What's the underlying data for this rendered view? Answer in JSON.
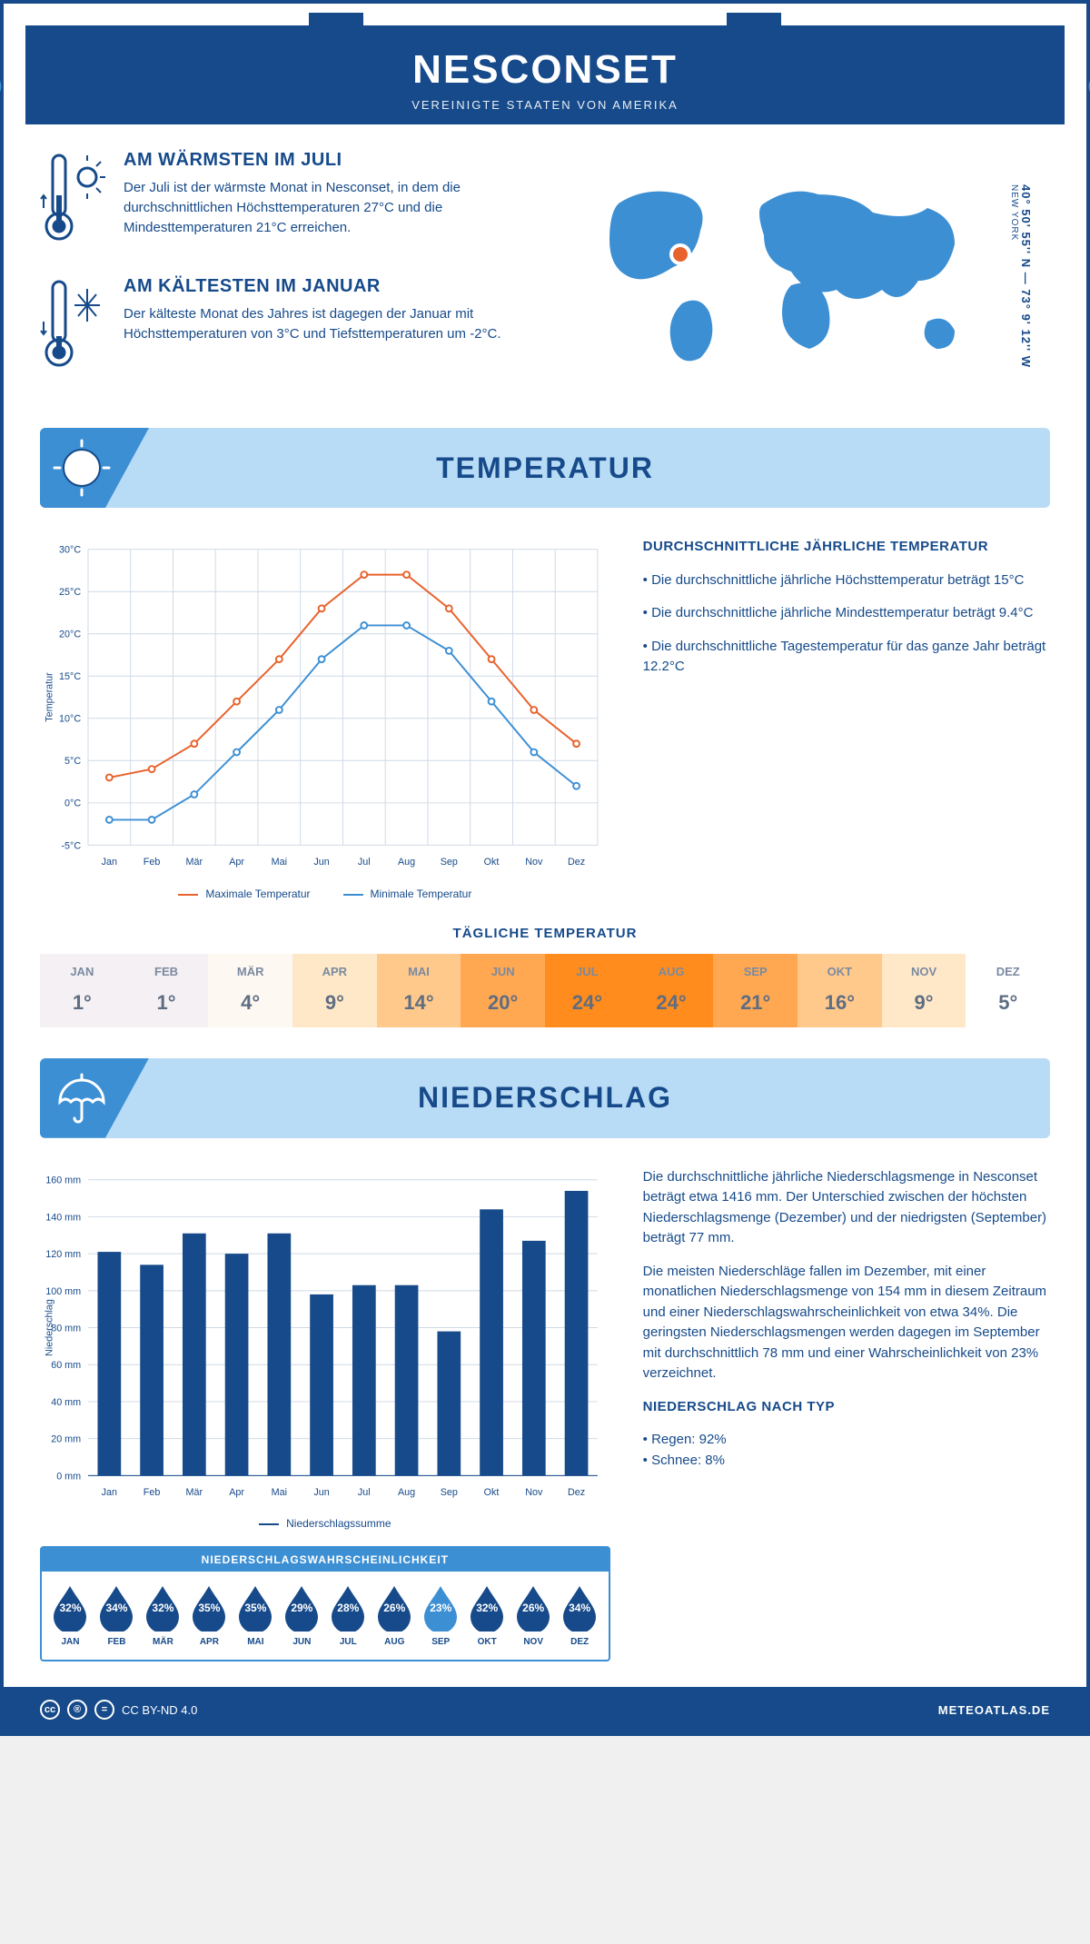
{
  "header": {
    "title": "NESCONSET",
    "subtitle": "VEREINIGTE STAATEN VON AMERIKA"
  },
  "intro": {
    "warm": {
      "title": "AM WÄRMSTEN IM JULI",
      "body": "Der Juli ist der wärmste Monat in Nesconset, in dem die durchschnittlichen Höchsttemperaturen 27°C und die Mindesttemperaturen 21°C erreichen."
    },
    "cold": {
      "title": "AM KÄLTESTEN IM JANUAR",
      "body": "Der kälteste Monat des Jahres ist dagegen der Januar mit Höchsttemperaturen von 3°C und Tiefsttemperaturen um -2°C."
    },
    "coords": "40° 50' 55'' N — 73° 9' 12'' W",
    "region": "NEW YORK"
  },
  "temp_section": {
    "banner": "TEMPERATUR",
    "chart": {
      "type": "line",
      "months": [
        "Jan",
        "Feb",
        "Mär",
        "Apr",
        "Mai",
        "Jun",
        "Jul",
        "Aug",
        "Sep",
        "Okt",
        "Nov",
        "Dez"
      ],
      "max_values": [
        3,
        4,
        7,
        12,
        17,
        23,
        27,
        27,
        23,
        17,
        11,
        7
      ],
      "min_values": [
        -2,
        -2,
        1,
        6,
        11,
        17,
        21,
        21,
        18,
        12,
        6,
        2
      ],
      "max_color": "#e8622d",
      "min_color": "#3d8fd4",
      "grid_color": "#cfd9e6",
      "text_color": "#164a8a",
      "ylabel": "Temperatur",
      "ylim": [
        -5,
        30
      ],
      "ytick_step": 5,
      "line_width": 2
    },
    "legend_max": "Maximale Temperatur",
    "legend_min": "Minimale Temperatur",
    "side": {
      "heading": "DURCHSCHNITTLICHE JÄHRLICHE TEMPERATUR",
      "b1": "• Die durchschnittliche jährliche Höchsttemperatur beträgt 15°C",
      "b2": "• Die durchschnittliche jährliche Mindesttemperatur beträgt 9.4°C",
      "b3": "• Die durchschnittliche Tagestemperatur für das ganze Jahr beträgt 12.2°C"
    }
  },
  "daily": {
    "title": "TÄGLICHE TEMPERATUR",
    "months": [
      "JAN",
      "FEB",
      "MÄR",
      "APR",
      "MAI",
      "JUN",
      "JUL",
      "AUG",
      "SEP",
      "OKT",
      "NOV",
      "DEZ"
    ],
    "values": [
      "1°",
      "1°",
      "4°",
      "9°",
      "14°",
      "20°",
      "24°",
      "24°",
      "21°",
      "16°",
      "9°",
      "5°"
    ],
    "bg_colors": [
      "#f4f0f3",
      "#f4f0f3",
      "#fdf8f2",
      "#ffe8c8",
      "#ffc98c",
      "#ffa851",
      "#ff8c1c",
      "#ff8c1c",
      "#ffa851",
      "#ffc98c",
      "#ffe8c8",
      "#ffffff"
    ]
  },
  "precip_section": {
    "banner": "NIEDERSCHLAG",
    "chart": {
      "type": "bar",
      "months": [
        "Jan",
        "Feb",
        "Mär",
        "Apr",
        "Mai",
        "Jun",
        "Jul",
        "Aug",
        "Sep",
        "Okt",
        "Nov",
        "Dez"
      ],
      "values": [
        121,
        114,
        131,
        120,
        131,
        98,
        103,
        103,
        78,
        144,
        127,
        154
      ],
      "bar_color": "#164a8a",
      "grid_color": "#cfd9e6",
      "text_color": "#164a8a",
      "ylabel": "Niederschlag",
      "ylim": [
        0,
        160
      ],
      "ytick_step": 20,
      "bar_width": 0.55
    },
    "legend": "Niederschlagssumme",
    "side": {
      "p1": "Die durchschnittliche jährliche Niederschlagsmenge in Nesconset beträgt etwa 1416 mm. Der Unterschied zwischen der höchsten Niederschlagsmenge (Dezember) und der niedrigsten (September) beträgt 77 mm.",
      "p2": "Die meisten Niederschläge fallen im Dezember, mit einer monatlichen Niederschlagsmenge von 154 mm in diesem Zeitraum und einer Niederschlagswahrscheinlichkeit von etwa 34%. Die geringsten Niederschlagsmengen werden dagegen im September mit durchschnittlich 78 mm und einer Wahrscheinlichkeit von 23% verzeichnet.",
      "type_heading": "NIEDERSCHLAG NACH TYP",
      "rain": "• Regen: 92%",
      "snow": "• Schnee: 8%"
    },
    "prob": {
      "title": "NIEDERSCHLAGSWAHRSCHEINLICHKEIT",
      "months": [
        "JAN",
        "FEB",
        "MÄR",
        "APR",
        "MAI",
        "JUN",
        "JUL",
        "AUG",
        "SEP",
        "OKT",
        "NOV",
        "DEZ"
      ],
      "pct": [
        "32%",
        "34%",
        "32%",
        "35%",
        "35%",
        "29%",
        "28%",
        "26%",
        "23%",
        "32%",
        "26%",
        "34%"
      ],
      "colors": [
        "#164a8a",
        "#164a8a",
        "#164a8a",
        "#164a8a",
        "#164a8a",
        "#164a8a",
        "#164a8a",
        "#164a8a",
        "#3d8fd4",
        "#164a8a",
        "#164a8a",
        "#164a8a"
      ]
    }
  },
  "footer": {
    "license": "CC BY-ND 4.0",
    "brand": "METEOATLAS.DE"
  },
  "colors": {
    "primary": "#164a8a",
    "accent": "#3d8fd4",
    "banner_bg": "#b9dcf6"
  }
}
